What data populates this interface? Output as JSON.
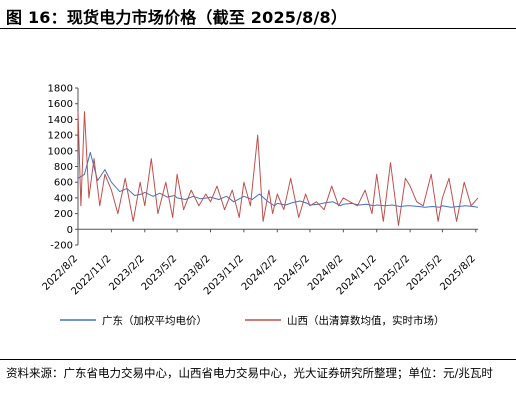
{
  "title": "图 16：现货电力市场价格（截至 2025/8/8）",
  "source": "资料来源：广东省电力交易中心，山西省电力交易中心，光大证券研究所整理；单位：元/兆瓦时",
  "chart_data": {
    "type": "line",
    "ylim": [
      -200,
      1800
    ],
    "yticks": [
      -200,
      0,
      200,
      400,
      600,
      800,
      1000,
      1200,
      1400,
      1600,
      1800
    ],
    "x_start": "2022-08-02",
    "x_end": "2025-08-08",
    "xticks": [
      "2022/8/2",
      "2022/11/2",
      "2023/2/2",
      "2023/5/2",
      "2023/8/2",
      "2023/11/2",
      "2024/2/2",
      "2024/5/2",
      "2024/8/2",
      "2024/11/2",
      "2025/2/2",
      "2025/5/2",
      "2025/8/2"
    ],
    "legend_position": "bottom",
    "series": [
      {
        "name": "广东（加权平均电价）",
        "color": "#4472C4",
        "x": [
          "2022-08-02",
          "2022-08-20",
          "2022-09-05",
          "2022-09-25",
          "2022-10-15",
          "2022-11-02",
          "2022-11-25",
          "2022-12-15",
          "2023-01-05",
          "2023-01-25",
          "2023-02-02",
          "2023-02-25",
          "2023-03-15",
          "2023-04-05",
          "2023-04-25",
          "2023-05-02",
          "2023-05-25",
          "2023-06-15",
          "2023-07-05",
          "2023-07-25",
          "2023-08-02",
          "2023-08-25",
          "2023-09-15",
          "2023-10-05",
          "2023-10-25",
          "2023-11-02",
          "2023-11-25",
          "2023-12-15",
          "2024-01-05",
          "2024-01-25",
          "2024-02-02",
          "2024-02-25",
          "2024-03-15",
          "2024-04-05",
          "2024-04-25",
          "2024-05-02",
          "2024-05-25",
          "2024-06-15",
          "2024-07-05",
          "2024-07-25",
          "2024-08-02",
          "2024-08-25",
          "2024-09-15",
          "2024-10-05",
          "2024-10-25",
          "2024-11-02",
          "2024-11-25",
          "2024-12-15",
          "2025-01-05",
          "2025-01-25",
          "2025-02-02",
          "2025-02-25",
          "2025-03-15",
          "2025-04-05",
          "2025-04-25",
          "2025-05-02",
          "2025-05-25",
          "2025-06-15",
          "2025-07-05",
          "2025-07-25",
          "2025-08-08"
        ],
        "values": [
          650,
          700,
          980,
          620,
          760,
          600,
          480,
          520,
          430,
          450,
          470,
          420,
          460,
          410,
          430,
          400,
          380,
          420,
          390,
          400,
          410,
          380,
          420,
          350,
          400,
          420,
          380,
          450,
          360,
          300,
          330,
          310,
          340,
          360,
          330,
          310,
          320,
          340,
          350,
          300,
          320,
          330,
          310,
          320,
          300,
          310,
          300,
          310,
          290,
          300,
          300,
          290,
          280,
          290,
          280,
          300,
          280,
          290,
          300,
          290,
          280
        ]
      },
      {
        "name": "山西（出清算数均值，实时市场）",
        "color": "#C0504D",
        "x": [
          "2022-08-02",
          "2022-08-10",
          "2022-08-20",
          "2022-09-01",
          "2022-09-15",
          "2022-10-01",
          "2022-10-15",
          "2022-11-02",
          "2022-11-20",
          "2022-12-10",
          "2023-01-01",
          "2023-01-20",
          "2023-02-02",
          "2023-02-20",
          "2023-03-10",
          "2023-04-01",
          "2023-04-20",
          "2023-05-02",
          "2023-05-20",
          "2023-06-10",
          "2023-07-01",
          "2023-07-20",
          "2023-08-02",
          "2023-08-20",
          "2023-09-10",
          "2023-10-01",
          "2023-10-20",
          "2023-11-02",
          "2023-11-20",
          "2023-12-10",
          "2023-12-25",
          "2024-01-10",
          "2024-01-20",
          "2024-02-02",
          "2024-02-20",
          "2024-03-10",
          "2024-04-01",
          "2024-04-20",
          "2024-05-02",
          "2024-05-20",
          "2024-06-10",
          "2024-07-01",
          "2024-07-20",
          "2024-08-02",
          "2024-08-20",
          "2024-09-10",
          "2024-10-01",
          "2024-10-20",
          "2024-11-02",
          "2024-11-20",
          "2024-12-10",
          "2025-01-01",
          "2025-01-20",
          "2025-02-02",
          "2025-02-20",
          "2025-03-10",
          "2025-04-01",
          "2025-04-20",
          "2025-05-02",
          "2025-05-20",
          "2025-06-10",
          "2025-07-01",
          "2025-07-20",
          "2025-08-08"
        ],
        "values": [
          1500,
          300,
          1500,
          400,
          900,
          300,
          700,
          500,
          200,
          650,
          100,
          600,
          300,
          900,
          200,
          600,
          150,
          700,
          250,
          500,
          300,
          450,
          350,
          550,
          250,
          500,
          150,
          600,
          300,
          1200,
          100,
          500,
          200,
          450,
          250,
          650,
          150,
          450,
          300,
          350,
          250,
          550,
          300,
          400,
          350,
          300,
          500,
          200,
          700,
          100,
          850,
          50,
          650,
          550,
          350,
          300,
          700,
          100,
          400,
          650,
          100,
          600,
          300,
          400
        ]
      }
    ]
  }
}
